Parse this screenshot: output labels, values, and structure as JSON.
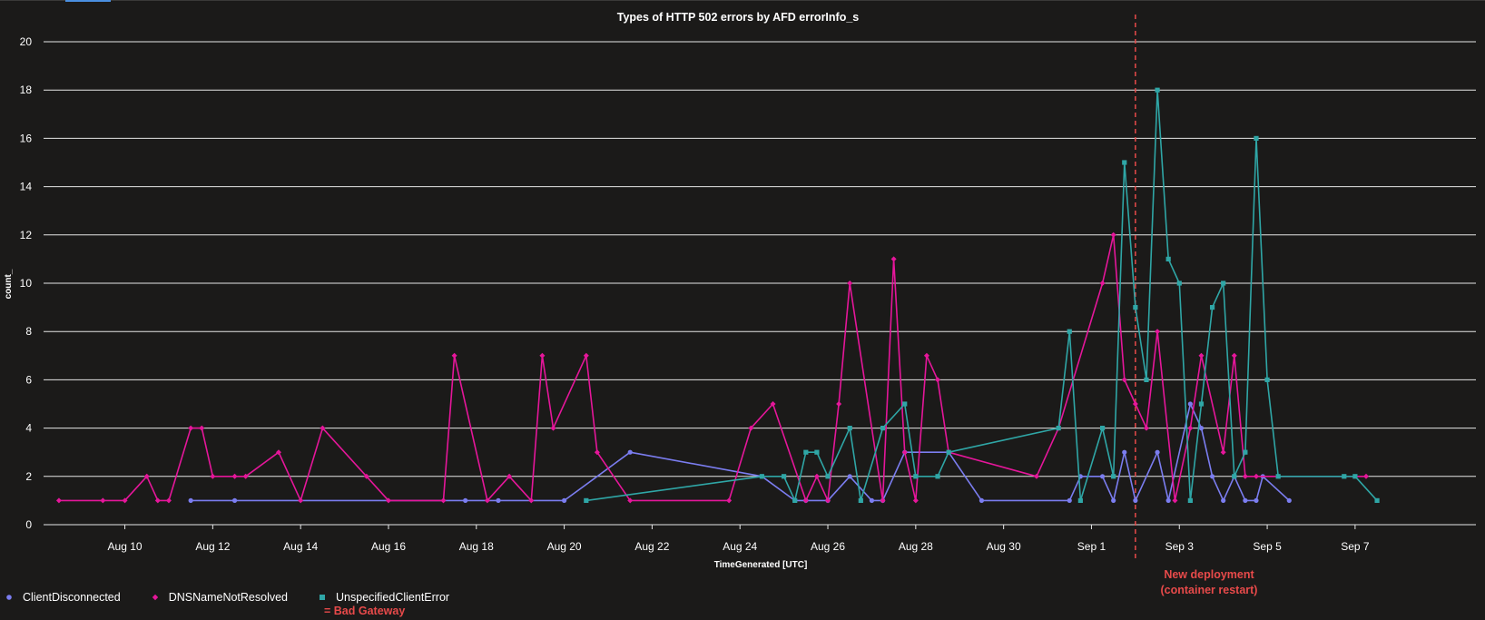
{
  "chart_data": {
    "type": "line",
    "title": "Types of HTTP 502 errors by AFD errorInfo_s",
    "xlabel": "TimeGenerated [UTC]",
    "ylabel": "count_",
    "ylim": [
      0,
      20
    ],
    "yticks": [
      0,
      2,
      4,
      6,
      8,
      10,
      12,
      14,
      16,
      18,
      20
    ],
    "xlim": [
      -1.85,
      30.75
    ],
    "xticks": [
      {
        "label": "Aug 10",
        "day": 0
      },
      {
        "label": "Aug 12",
        "day": 2
      },
      {
        "label": "Aug 14",
        "day": 4
      },
      {
        "label": "Aug 16",
        "day": 6
      },
      {
        "label": "Aug 18",
        "day": 8
      },
      {
        "label": "Aug 20",
        "day": 10
      },
      {
        "label": "Aug 22",
        "day": 12
      },
      {
        "label": "Aug 24",
        "day": 14
      },
      {
        "label": "Aug 26",
        "day": 16
      },
      {
        "label": "Aug 28",
        "day": 18
      },
      {
        "label": "Aug 30",
        "day": 20
      },
      {
        "label": "Sep 1",
        "day": 22
      },
      {
        "label": "Sep 3",
        "day": 24
      },
      {
        "label": "Sep 5",
        "day": 26
      },
      {
        "label": "Sep 7",
        "day": 28
      }
    ],
    "grid": true,
    "legend": "bottom-left",
    "series": [
      {
        "name": "ClientDisconnected",
        "color": "#7b7df0",
        "marker": "circle",
        "points": [
          [
            1.5,
            1
          ],
          [
            2.5,
            1
          ],
          [
            7.75,
            1
          ],
          [
            8.5,
            1
          ],
          [
            10,
            1
          ],
          [
            11.5,
            3
          ],
          [
            14.5,
            2
          ],
          [
            15.25,
            1
          ],
          [
            15.5,
            1
          ],
          [
            16,
            1
          ],
          [
            16.5,
            2
          ],
          [
            17,
            1
          ],
          [
            17.25,
            1
          ],
          [
            17.75,
            3
          ],
          [
            18.75,
            3
          ],
          [
            19.5,
            1
          ],
          [
            21.5,
            1
          ],
          [
            21.75,
            2
          ],
          [
            22.25,
            2
          ],
          [
            22.5,
            1
          ],
          [
            22.75,
            3
          ],
          [
            23,
            1
          ],
          [
            23.5,
            3
          ],
          [
            23.75,
            1
          ],
          [
            24.25,
            5
          ],
          [
            24.5,
            4
          ],
          [
            24.75,
            2
          ],
          [
            25,
            1
          ],
          [
            25.25,
            2
          ],
          [
            25.5,
            1
          ],
          [
            25.75,
            1
          ],
          [
            25.9,
            2
          ],
          [
            26.5,
            1
          ]
        ]
      },
      {
        "name": "DNSNameNotResolved",
        "color": "#e5169a",
        "marker": "diamond",
        "points": [
          [
            -1.5,
            1
          ],
          [
            -0.5,
            1
          ],
          [
            0,
            1
          ],
          [
            0.5,
            2
          ],
          [
            0.75,
            1
          ],
          [
            1,
            1
          ],
          [
            1.5,
            4
          ],
          [
            1.75,
            4
          ],
          [
            2,
            2
          ],
          [
            2.5,
            2
          ],
          [
            2.75,
            2
          ],
          [
            3.5,
            3
          ],
          [
            4,
            1
          ],
          [
            4.5,
            4
          ],
          [
            5.5,
            2
          ],
          [
            6,
            1
          ],
          [
            7.25,
            1
          ],
          [
            7.5,
            7
          ],
          [
            8.25,
            1
          ],
          [
            8.75,
            2
          ],
          [
            9.25,
            1
          ],
          [
            9.5,
            7
          ],
          [
            9.75,
            4
          ],
          [
            10.5,
            7
          ],
          [
            10.75,
            3
          ],
          [
            11.5,
            1
          ],
          [
            13.75,
            1
          ],
          [
            14.25,
            4
          ],
          [
            14.75,
            5
          ],
          [
            15.5,
            1
          ],
          [
            15.75,
            2
          ],
          [
            16,
            1
          ],
          [
            16.25,
            5
          ],
          [
            16.5,
            10
          ],
          [
            17.25,
            1
          ],
          [
            17.5,
            11
          ],
          [
            17.75,
            3
          ],
          [
            18,
            1
          ],
          [
            18.25,
            7
          ],
          [
            18.5,
            6
          ],
          [
            18.75,
            3
          ],
          [
            20.75,
            2
          ],
          [
            21.25,
            4
          ],
          [
            22.25,
            10
          ],
          [
            22.5,
            12
          ],
          [
            22.75,
            6
          ],
          [
            23,
            5
          ],
          [
            23.25,
            4
          ],
          [
            23.5,
            8
          ],
          [
            23.9,
            1
          ],
          [
            24.25,
            4
          ],
          [
            24.5,
            7
          ],
          [
            25,
            3
          ],
          [
            25.25,
            7
          ],
          [
            25.5,
            2
          ],
          [
            25.75,
            2
          ],
          [
            28.25,
            2
          ]
        ]
      },
      {
        "name": "UnspecifiedClientError",
        "color": "#2fa6a6",
        "marker": "square",
        "points": [
          [
            10.5,
            1
          ],
          [
            14.5,
            2
          ],
          [
            15,
            2
          ],
          [
            15.25,
            1
          ],
          [
            15.5,
            3
          ],
          [
            15.75,
            3
          ],
          [
            16,
            2
          ],
          [
            16.5,
            4
          ],
          [
            16.75,
            1
          ],
          [
            17.25,
            4
          ],
          [
            17.75,
            5
          ],
          [
            18,
            2
          ],
          [
            18.5,
            2
          ],
          [
            18.75,
            3
          ],
          [
            21.25,
            4
          ],
          [
            21.5,
            8
          ],
          [
            21.75,
            1
          ],
          [
            22.25,
            4
          ],
          [
            22.5,
            2
          ],
          [
            22.75,
            15
          ],
          [
            23,
            9
          ],
          [
            23.25,
            6
          ],
          [
            23.5,
            18
          ],
          [
            23.75,
            11
          ],
          [
            24,
            10
          ],
          [
            24.25,
            1
          ],
          [
            24.5,
            5
          ],
          [
            24.75,
            9
          ],
          [
            25,
            10
          ],
          [
            25.25,
            2
          ],
          [
            25.5,
            3
          ],
          [
            25.75,
            16
          ],
          [
            26,
            6
          ],
          [
            26.25,
            2
          ],
          [
            27.75,
            2
          ],
          [
            28,
            2
          ],
          [
            28.5,
            1
          ]
        ]
      }
    ],
    "annotations": [
      {
        "type": "vline",
        "day": 23,
        "color": "#e84a4a",
        "style": "dashed",
        "label": "New deployment (container restart)"
      }
    ]
  },
  "legend_note": "= Bad Gateway",
  "deploy_note": {
    "line1": "New deployment",
    "line2": "(container restart)"
  }
}
